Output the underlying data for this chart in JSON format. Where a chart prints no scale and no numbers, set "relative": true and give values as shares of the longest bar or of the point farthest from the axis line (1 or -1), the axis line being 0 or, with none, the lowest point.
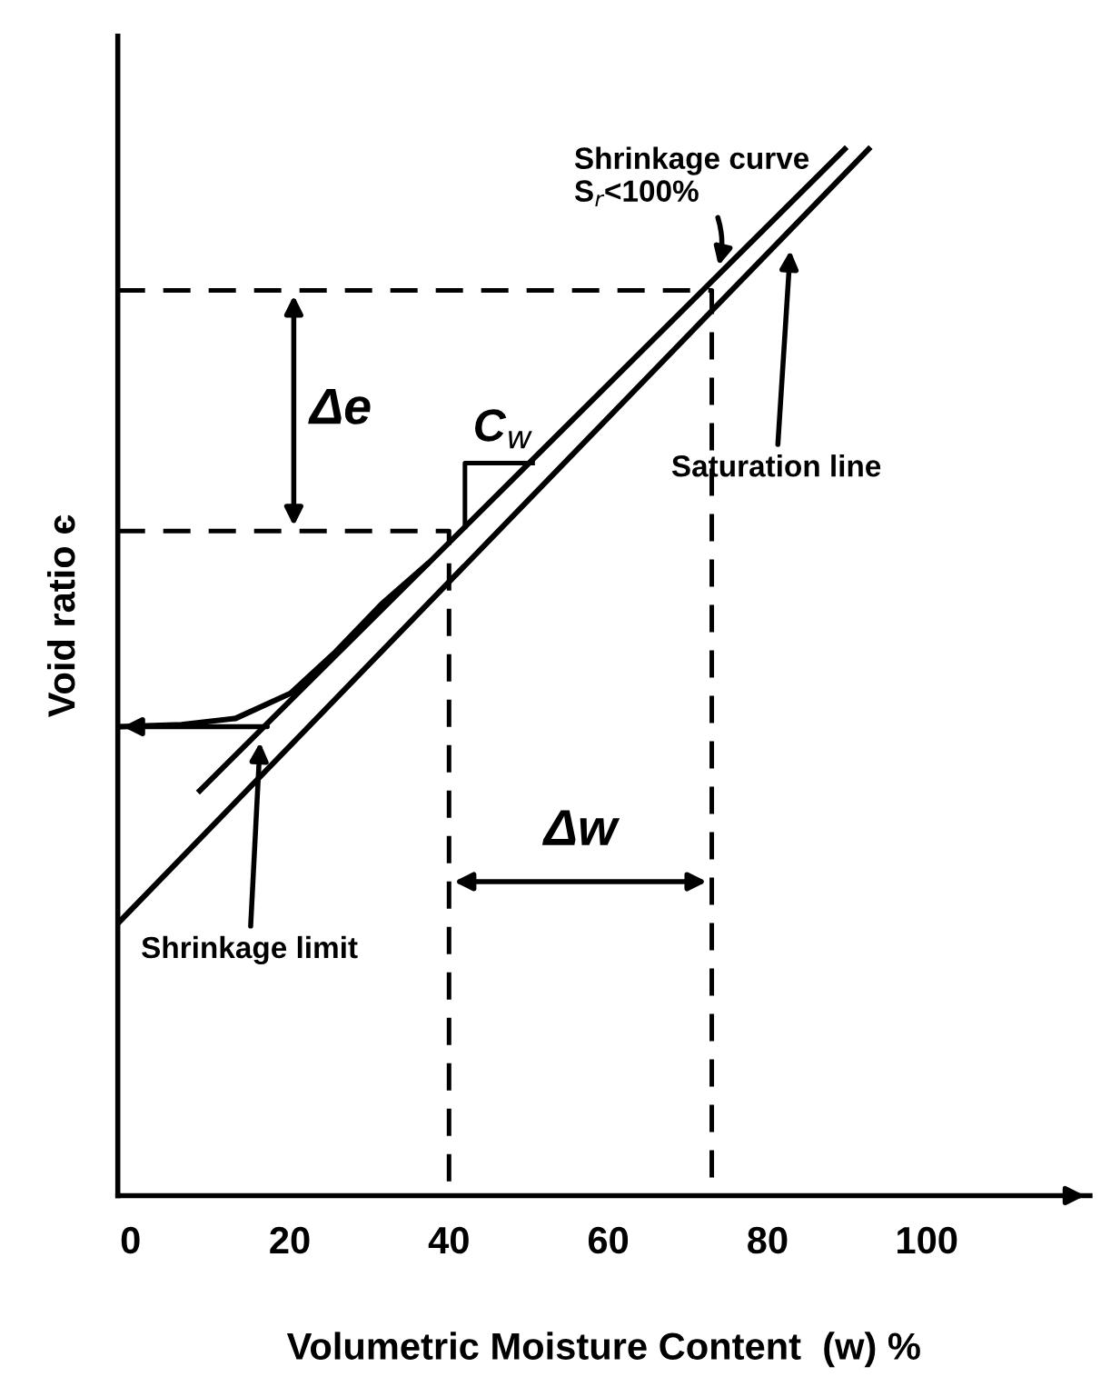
{
  "chart_data": {
    "type": "line",
    "relative": true,
    "xlabel": "Volumetric Moisture Content  (w) %",
    "ylabel": "Void ratio є",
    "xlim": [
      -1.6,
      120.5
    ],
    "xticks": [
      0,
      20,
      40,
      60,
      80,
      100
    ],
    "grid": false,
    "legend": false,
    "marker": "none",
    "series": [
      {
        "color": "#000000",
        "line_style": "solid",
        "x": [
          -1.6,
          92.7
        ],
        "values": [
          0.26,
          1.0
        ]
      },
      {
        "color": "#000000",
        "line_style": "solid",
        "x": [
          8.7,
          89.7
        ],
        "values": [
          0.387,
          1.0
        ]
      },
      {
        "color": "#000000",
        "line_style": "solid",
        "x": [
          -1.6,
          6.4,
          13.2,
          20.1,
          25.8,
          31.5,
          37.2
        ],
        "values": [
          0.448,
          0.45,
          0.456,
          0.48,
          0.52,
          0.565,
          0.603
        ]
      },
      {
        "color": "#000000",
        "line_style": "dashed",
        "x": [
          -1.6,
          73,
          73
        ],
        "values": [
          0.865,
          0.865,
          0
        ]
      },
      {
        "color": "#000000",
        "line_style": "dashed",
        "x": [
          -1.6,
          40,
          40
        ],
        "values": [
          0.635,
          0.635,
          0
        ]
      }
    ],
    "annotations": [
      "Shrinkage curve\nS$_{r}$<100%",
      "Saturation line",
      "Shrinkage limit",
      "Δe",
      "Δw",
      {
        "text": "C$_{w}$",
        "x": 50.5,
        "y": 0.7
      }
    ]
  }
}
